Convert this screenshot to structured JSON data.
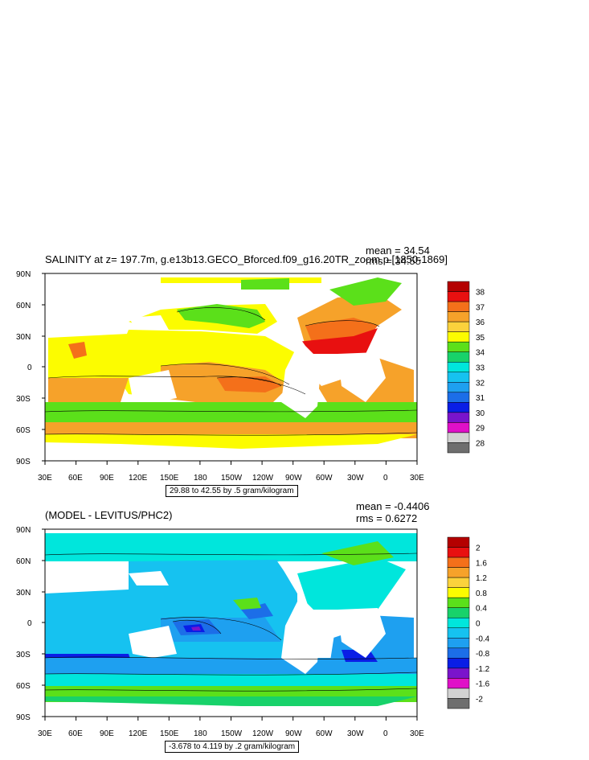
{
  "panels": [
    {
      "title": "SALINITY at z= 197.7m, g.e13b13.GECO_Bforced.f09_g16.20TR_zoom.p [1850-1869]",
      "mean_text": "mean = 34.54",
      "rms_text": "rms = 34.55",
      "range_text": "29.88 to 42.55 by .5 gram/kilogram",
      "colorbar": {
        "labels": [
          "38",
          "37",
          "36",
          "35",
          "34",
          "33",
          "32",
          "31",
          "30",
          "29",
          "28"
        ],
        "colors": [
          "#b40000",
          "#e81010",
          "#f4701a",
          "#f6a22a",
          "#fbd23c",
          "#fcfc00",
          "#5be01a",
          "#18d26a",
          "#00e6dc",
          "#16c2f0",
          "#1ea0f0",
          "#1c6ee8",
          "#0a1ee6",
          "#7a14cc",
          "#e010c8",
          "#d2d2d2",
          "#6e6e6e"
        ]
      }
    },
    {
      "title": "(MODEL - LEVITUS/PHC2)",
      "mean_text": "mean = -0.4406",
      "rms_text": "rms = 0.6272",
      "range_text": "-3.678 to 4.119 by .2 gram/kilogram",
      "colorbar": {
        "labels": [
          "2",
          "1.6",
          "1.2",
          "0.8",
          "0.4",
          "0",
          "-0.4",
          "-0.8",
          "-1.2",
          "-1.6",
          "-2"
        ],
        "colors": [
          "#b40000",
          "#e81010",
          "#f4701a",
          "#f6a22a",
          "#fbd23c",
          "#fcfc00",
          "#5be01a",
          "#18d26a",
          "#00e6dc",
          "#16c2f0",
          "#1ea0f0",
          "#1c6ee8",
          "#0a1ee6",
          "#7a14cc",
          "#e010c8",
          "#d2d2d2",
          "#6e6e6e"
        ]
      }
    }
  ],
  "axes": {
    "lat_labels": [
      "90N",
      "60N",
      "30N",
      "0",
      "30S",
      "60S",
      "90S"
    ],
    "lon_labels": [
      "30E",
      "60E",
      "90E",
      "120E",
      "150E",
      "180",
      "150W",
      "120W",
      "90W",
      "60W",
      "30W",
      "0",
      "30E"
    ]
  }
}
